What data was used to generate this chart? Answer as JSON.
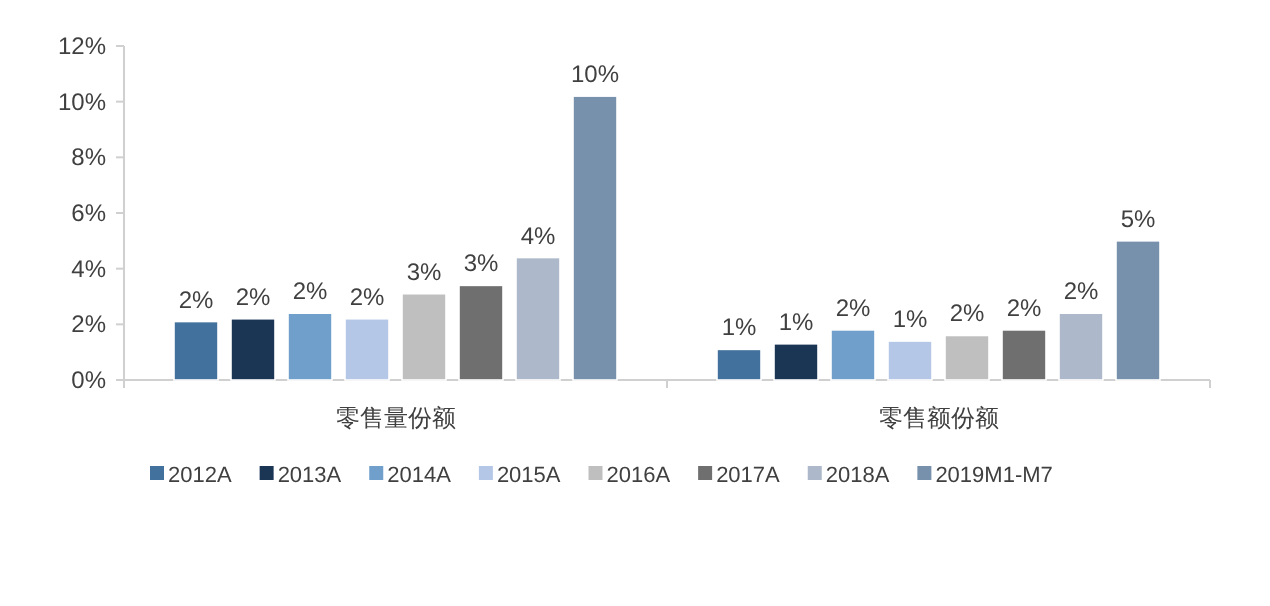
{
  "chart_data": {
    "type": "bar",
    "categories": [
      "零售量份额",
      "零售额份额"
    ],
    "series": [
      {
        "name": "2012A",
        "color": "#41719c",
        "values": [
          2.1,
          1.1
        ],
        "value_labels": [
          "2%",
          "1%"
        ]
      },
      {
        "name": "2013A",
        "color": "#1b3655",
        "values": [
          2.2,
          1.3
        ],
        "value_labels": [
          "2%",
          "1%"
        ]
      },
      {
        "name": "2014A",
        "color": "#6f9fca",
        "values": [
          2.4,
          1.8
        ],
        "value_labels": [
          "2%",
          "2%"
        ]
      },
      {
        "name": "2015A",
        "color": "#b4c7e7",
        "values": [
          2.2,
          1.4
        ],
        "value_labels": [
          "2%",
          "1%"
        ]
      },
      {
        "name": "2016A",
        "color": "#bfbfbf",
        "values": [
          3.1,
          1.6
        ],
        "value_labels": [
          "3%",
          "2%"
        ]
      },
      {
        "name": "2017A",
        "color": "#6f6f6f",
        "values": [
          3.4,
          1.8
        ],
        "value_labels": [
          "3%",
          "2%"
        ]
      },
      {
        "name": "2018A",
        "color": "#adb9ca",
        "values": [
          4.4,
          2.4
        ],
        "value_labels": [
          "4%",
          "2%"
        ]
      },
      {
        "name": "2019M1-M7",
        "color": "#7790ab",
        "values": [
          10.2,
          5.0
        ],
        "value_labels": [
          "10%",
          "5%"
        ]
      }
    ],
    "ylim": [
      0,
      12
    ],
    "yticks": [
      {
        "value": 0,
        "label": "0%"
      },
      {
        "value": 2,
        "label": "2%"
      },
      {
        "value": 4,
        "label": "4%"
      },
      {
        "value": 6,
        "label": "6%"
      },
      {
        "value": 8,
        "label": "8%"
      },
      {
        "value": 10,
        "label": "10%"
      },
      {
        "value": 12,
        "label": "12%"
      }
    ],
    "legend": "bottom"
  }
}
